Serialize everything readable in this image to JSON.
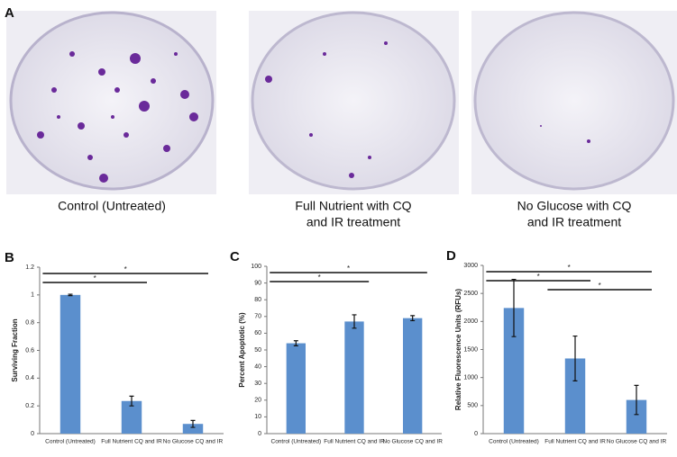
{
  "panel_a": {
    "label": "A",
    "captions": [
      [
        "Control (Untreated)"
      ],
      [
        "Full Nutrient with CQ",
        "and IR treatment"
      ],
      [
        "No Glucose with CQ",
        "and IR treatment"
      ]
    ]
  },
  "chart_data": [
    {
      "type": "bar",
      "panel": "B",
      "ylabel": "Surviving Fraction",
      "categories": [
        "Control (Untreated)",
        "Full Nutrient CQ and IR",
        "No Glucose CQ and IR"
      ],
      "values": [
        1.0,
        0.235,
        0.07
      ],
      "errors": [
        0.005,
        0.035,
        0.025
      ],
      "color": "#5b8fcd",
      "ylim": [
        0,
        1.2
      ],
      "yticks": [
        0,
        0.2,
        0.4,
        0.6,
        0.8,
        1,
        1.2
      ],
      "significance": [
        {
          "from": 0,
          "to": 2,
          "label": "*"
        },
        {
          "from": 0,
          "to": 1,
          "label": "*"
        }
      ]
    },
    {
      "type": "bar",
      "panel": "C",
      "ylabel": "Percent Apoptotic (%)",
      "categories": [
        "Control (Untreated)",
        "Full Nutrient CQ and IR",
        "No Glucose CQ and IR"
      ],
      "values": [
        54,
        67,
        69
      ],
      "errors": [
        1.5,
        4,
        1.5
      ],
      "color": "#5b8fcd",
      "ylim": [
        0,
        100
      ],
      "yticks": [
        0,
        10,
        20,
        30,
        40,
        50,
        60,
        70,
        80,
        90,
        100
      ],
      "significance": [
        {
          "from": 0,
          "to": 2,
          "label": "*"
        },
        {
          "from": 0,
          "to": 1,
          "label": "*"
        }
      ]
    },
    {
      "type": "bar",
      "panel": "D",
      "ylabel": "Relative Fluorescence Units (RFUs)",
      "categories": [
        "Control (Untreated)",
        "Full Nutrient CQ and IR",
        "No Glucose CQ and IR"
      ],
      "values": [
        2240,
        1340,
        600
      ],
      "errors": [
        510,
        400,
        260
      ],
      "color": "#5b8fcd",
      "ylim": [
        0,
        3000
      ],
      "yticks": [
        0,
        500,
        1000,
        1500,
        2000,
        2500,
        3000
      ],
      "significance": [
        {
          "from": 0,
          "to": 2,
          "label": "*"
        },
        {
          "from": 0,
          "to": 1,
          "label": "*"
        },
        {
          "from": 1,
          "to": 2,
          "label": "*"
        }
      ]
    }
  ]
}
